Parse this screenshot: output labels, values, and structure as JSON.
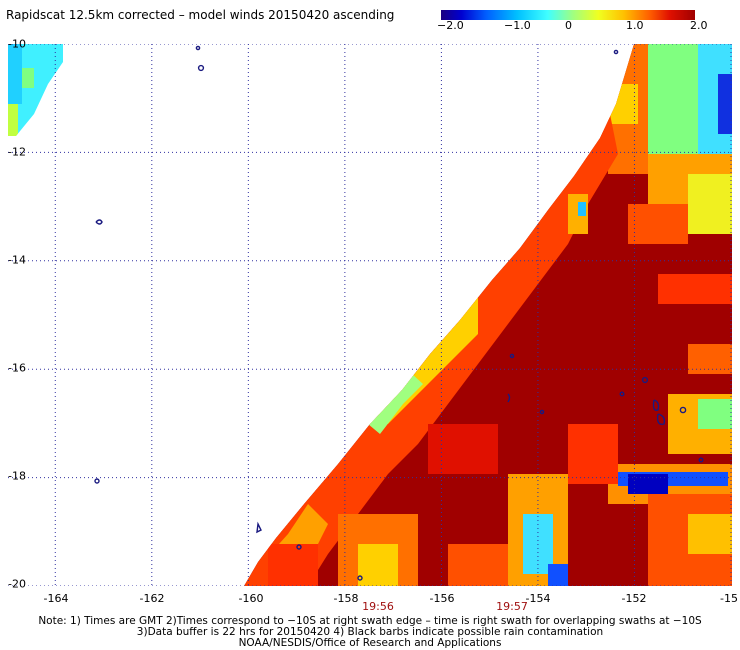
{
  "title": "Rapidscat 12.5km corrected – model winds 20150420 ascending",
  "colorbar": {
    "ticks": [
      "−2.0",
      "−1.0",
      "0",
      "1.0",
      "2.0"
    ],
    "min": -2.0,
    "max": 2.0,
    "colors": [
      "#1a0080",
      "#0000d0",
      "#0060ff",
      "#00c0ff",
      "#40ffff",
      "#a0ff80",
      "#f0ff20",
      "#ffc000",
      "#ff6000",
      "#e01000",
      "#a00000"
    ]
  },
  "map": {
    "lon_range": [
      -165,
      -150
    ],
    "lat_range": [
      -20,
      -10
    ],
    "x_ticks": [
      "-164",
      "-162",
      "-160",
      "-158",
      "-156",
      "-154",
      "-152",
      "-15"
    ],
    "y_ticks": [
      "-10",
      "-12",
      "-14",
      "-16",
      "-18",
      "-20"
    ],
    "grid_color": "#3030a0",
    "land_color": "#1a1a80"
  },
  "times": [
    "19:56",
    "19:57"
  ],
  "notes": [
    "Note: 1) Times are GMT 2)Times correspond to −10S at right swath edge – time is right swath for overlapping swaths at −10S",
    "3)Data buffer is 22 hrs for 20150420 4) Black barbs indicate possible rain contamination",
    "NOAA/NESDIS/Office of Research and Applications"
  ]
}
